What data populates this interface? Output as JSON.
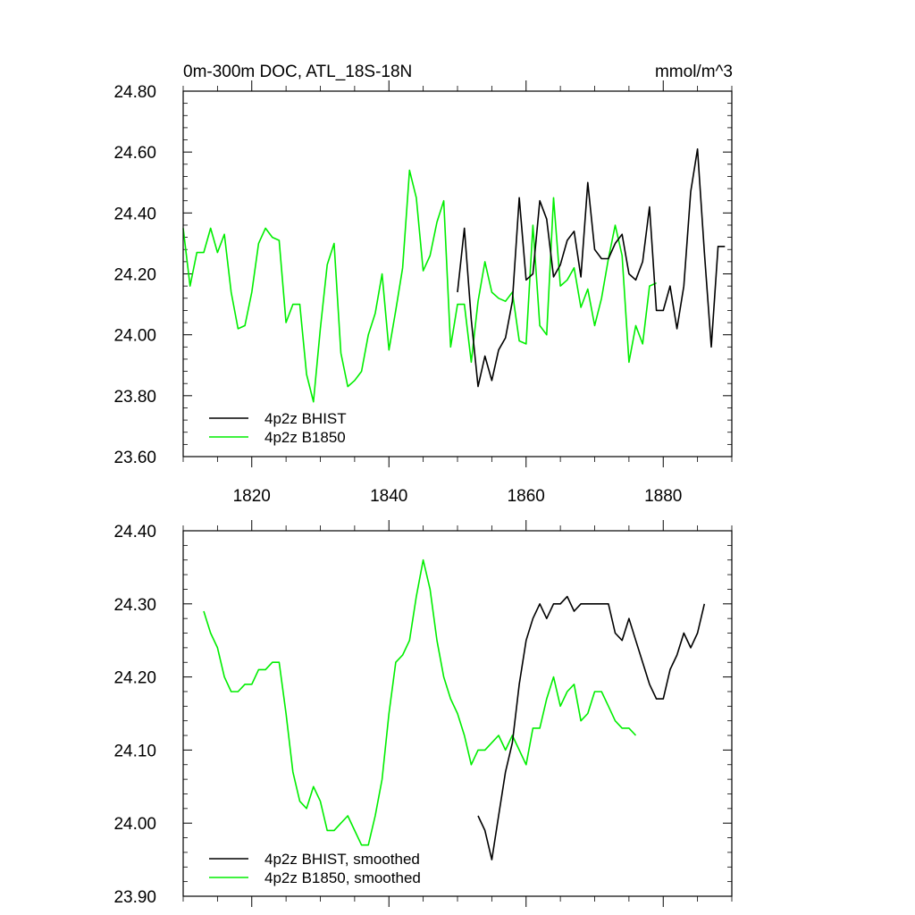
{
  "chart_data": [
    {
      "type": "line",
      "title": "0m-300m DOC, ATL_18S-18N",
      "units": "mmol/m^3",
      "xlim": [
        1810,
        1890
      ],
      "ylim": [
        23.6,
        24.8
      ],
      "x_ticks": [
        1820,
        1840,
        1860,
        1880
      ],
      "x_tick_labels": [
        "1820",
        "1840",
        "1860",
        "1880"
      ],
      "y_ticks": [
        23.6,
        23.8,
        24.0,
        24.2,
        24.4,
        24.6,
        24.8
      ],
      "y_tick_labels": [
        "23.60",
        "23.80",
        "24.00",
        "24.20",
        "24.40",
        "24.60",
        "24.80"
      ],
      "legend_position": "bottom-left",
      "series": [
        {
          "name": "4p2z BHIST",
          "color": "#000000",
          "x": [
            1850,
            1851,
            1852,
            1853,
            1854,
            1855,
            1856,
            1857,
            1858,
            1859,
            1860,
            1861,
            1862,
            1863,
            1864,
            1865,
            1866,
            1867,
            1868,
            1869,
            1870,
            1871,
            1872,
            1873,
            1874,
            1875,
            1876,
            1877,
            1878,
            1879,
            1880,
            1881,
            1882,
            1883,
            1884,
            1885,
            1886,
            1887,
            1888,
            1889
          ],
          "values": [
            24.14,
            24.35,
            24.05,
            23.83,
            23.93,
            23.85,
            23.95,
            23.99,
            24.11,
            24.45,
            24.18,
            24.2,
            24.44,
            24.38,
            24.19,
            24.23,
            24.31,
            24.34,
            24.19,
            24.5,
            24.28,
            24.25,
            24.25,
            24.3,
            24.33,
            24.2,
            24.18,
            24.24,
            24.42,
            24.08,
            24.08,
            24.16,
            24.02,
            24.16,
            24.47,
            24.61,
            24.27,
            23.96,
            24.29,
            24.29
          ]
        },
        {
          "name": "4p2z B1850",
          "color": "#00ee00",
          "x": [
            1810,
            1811,
            1812,
            1813,
            1814,
            1815,
            1816,
            1817,
            1818,
            1819,
            1820,
            1821,
            1822,
            1823,
            1824,
            1825,
            1826,
            1827,
            1828,
            1829,
            1830,
            1831,
            1832,
            1833,
            1834,
            1835,
            1836,
            1837,
            1838,
            1839,
            1840,
            1841,
            1842,
            1843,
            1844,
            1845,
            1846,
            1847,
            1848,
            1849,
            1850,
            1851,
            1852,
            1853,
            1854,
            1855,
            1856,
            1857,
            1858,
            1859,
            1860,
            1861,
            1862,
            1863,
            1864,
            1865,
            1866,
            1867,
            1868,
            1869,
            1870,
            1871,
            1872,
            1873,
            1874,
            1875,
            1876,
            1877,
            1878,
            1879
          ],
          "values": [
            24.35,
            24.16,
            24.27,
            24.27,
            24.35,
            24.27,
            24.33,
            24.14,
            24.02,
            24.03,
            24.14,
            24.3,
            24.35,
            24.32,
            24.31,
            24.04,
            24.1,
            24.1,
            23.87,
            23.78,
            24.02,
            24.23,
            24.3,
            23.94,
            23.83,
            23.85,
            23.88,
            24.0,
            24.07,
            24.2,
            23.95,
            24.08,
            24.22,
            24.54,
            24.45,
            24.21,
            24.26,
            24.37,
            24.44,
            23.96,
            24.1,
            24.1,
            23.91,
            24.11,
            24.24,
            24.14,
            24.12,
            24.11,
            24.14,
            23.98,
            23.97,
            24.36,
            24.03,
            24.0,
            24.45,
            24.16,
            24.18,
            24.22,
            24.09,
            24.15,
            24.03,
            24.12,
            24.25,
            24.36,
            24.26,
            23.91,
            24.03,
            23.97,
            24.16,
            24.17
          ]
        }
      ]
    },
    {
      "type": "line",
      "xlim": [
        1810,
        1890
      ],
      "ylim": [
        23.9,
        24.4
      ],
      "x_ticks": [
        1820,
        1840,
        1860,
        1880
      ],
      "y_ticks": [
        23.9,
        24.0,
        24.1,
        24.2,
        24.3,
        24.4
      ],
      "y_tick_labels": [
        "23.90",
        "24.00",
        "24.10",
        "24.20",
        "24.30",
        "24.40"
      ],
      "legend_position": "bottom-left",
      "series": [
        {
          "name": "4p2z BHIST, smoothed",
          "color": "#000000",
          "x": [
            1853,
            1854,
            1855,
            1856,
            1857,
            1858,
            1859,
            1860,
            1861,
            1862,
            1863,
            1864,
            1865,
            1866,
            1867,
            1868,
            1869,
            1870,
            1871,
            1872,
            1873,
            1874,
            1875,
            1876,
            1877,
            1878,
            1879,
            1880,
            1881,
            1882,
            1883,
            1884,
            1885,
            1886
          ],
          "values": [
            24.01,
            23.99,
            23.95,
            24.01,
            24.07,
            24.11,
            24.19,
            24.25,
            24.28,
            24.3,
            24.28,
            24.3,
            24.3,
            24.31,
            24.29,
            24.3,
            24.3,
            24.3,
            24.3,
            24.3,
            24.26,
            24.25,
            24.28,
            24.25,
            24.22,
            24.19,
            24.17,
            24.17,
            24.21,
            24.23,
            24.26,
            24.24,
            24.26,
            24.3
          ]
        },
        {
          "name": "4p2z B1850, smoothed",
          "color": "#00ee00",
          "x": [
            1813,
            1814,
            1815,
            1816,
            1817,
            1818,
            1819,
            1820,
            1821,
            1822,
            1823,
            1824,
            1825,
            1826,
            1827,
            1828,
            1829,
            1830,
            1831,
            1832,
            1833,
            1834,
            1835,
            1836,
            1837,
            1838,
            1839,
            1840,
            1841,
            1842,
            1843,
            1844,
            1845,
            1846,
            1847,
            1848,
            1849,
            1850,
            1851,
            1852,
            1853,
            1854,
            1855,
            1856,
            1857,
            1858,
            1859,
            1860,
            1861,
            1862,
            1863,
            1864,
            1865,
            1866,
            1867,
            1868,
            1869,
            1870,
            1871,
            1872,
            1873,
            1874,
            1875,
            1876
          ],
          "values": [
            24.29,
            24.26,
            24.24,
            24.2,
            24.18,
            24.18,
            24.19,
            24.19,
            24.21,
            24.21,
            24.22,
            24.22,
            24.15,
            24.07,
            24.03,
            24.02,
            24.05,
            24.03,
            23.99,
            23.99,
            24.0,
            24.01,
            23.99,
            23.97,
            23.97,
            24.01,
            24.06,
            24.15,
            24.22,
            24.23,
            24.25,
            24.31,
            24.36,
            24.32,
            24.25,
            24.2,
            24.17,
            24.15,
            24.12,
            24.08,
            24.1,
            24.1,
            24.11,
            24.12,
            24.1,
            24.12,
            24.1,
            24.08,
            24.13,
            24.13,
            24.17,
            24.2,
            24.16,
            24.18,
            24.19,
            24.14,
            24.15,
            24.18,
            24.18,
            24.16,
            24.14,
            24.13,
            24.13,
            24.12
          ]
        }
      ]
    }
  ]
}
